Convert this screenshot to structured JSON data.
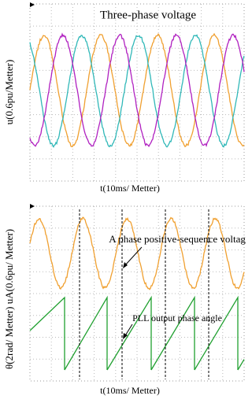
{
  "top_panel": {
    "title": "Three-phase voltage",
    "y_label": "u(0.6pu/Metter)",
    "x_label": "t(10ms/ Metter)"
  },
  "bottom_panel": {
    "y_label": "θ(2rad/ Metter) uA(0.6pu/ Metter)",
    "x_label": "t(10ms/ Metter)",
    "annotations": [
      "A phase positive-sequence voltage",
      "PLL output phase angle"
    ]
  }
}
